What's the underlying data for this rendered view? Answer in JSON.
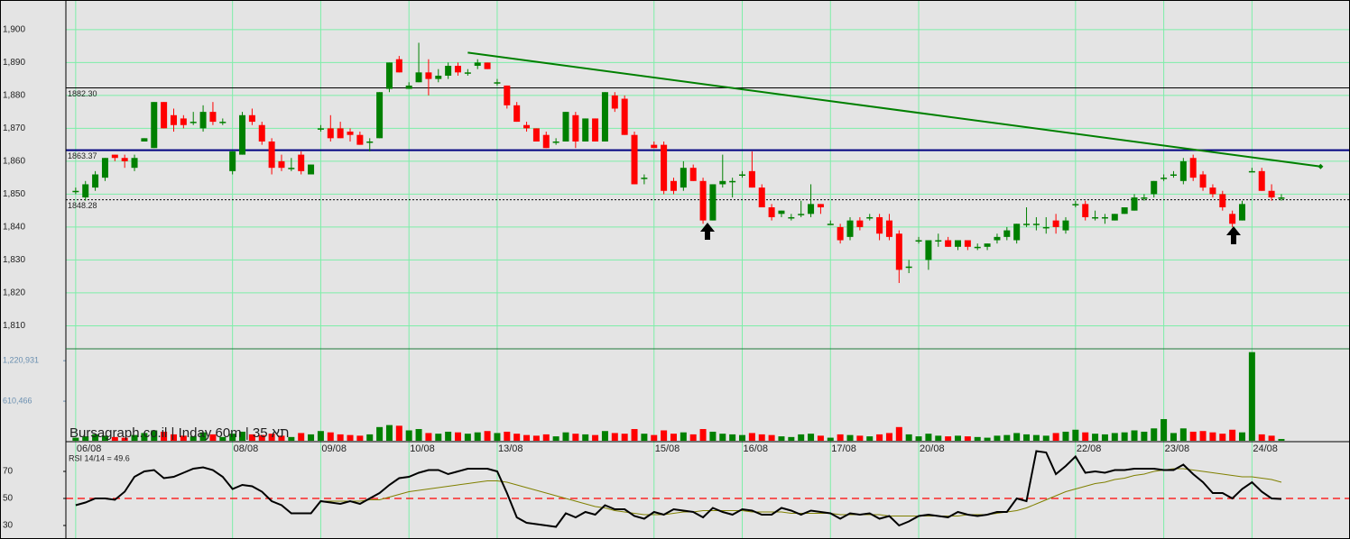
{
  "chart_data": {
    "type": "candlestick",
    "title": "Bursagraph.co.il | Inday 60m | 35 תא",
    "up_color": "#008000",
    "down_color": "#ff0000",
    "grid": true,
    "xlim": [
      -1,
      130
    ],
    "xticks": [
      {
        "value": 0,
        "label": "06/08"
      },
      {
        "value": 16,
        "label": "08/08"
      },
      {
        "value": 25,
        "label": "09/08"
      },
      {
        "value": 34,
        "label": "10/08"
      },
      {
        "value": 43,
        "label": "13/08"
      },
      {
        "value": 59,
        "label": "15/08"
      },
      {
        "value": 68,
        "label": "16/08"
      },
      {
        "value": 77,
        "label": "17/08"
      },
      {
        "value": 86,
        "label": "20/08"
      },
      {
        "value": 102,
        "label": "22/08"
      },
      {
        "value": 111,
        "label": "23/08"
      },
      {
        "value": 120,
        "label": "24/08"
      }
    ],
    "ylim": [
      1803,
      1909
    ],
    "yticks": [
      {
        "value": 1900,
        "label": "1,900"
      },
      {
        "value": 1890,
        "label": "1,890"
      },
      {
        "value": 1880,
        "label": "1,880"
      },
      {
        "value": 1870,
        "label": "1,870"
      },
      {
        "value": 1860,
        "label": "1,860"
      },
      {
        "value": 1850,
        "label": "1,850"
      },
      {
        "value": 1840,
        "label": "1,840"
      },
      {
        "value": 1830,
        "label": "1,830"
      },
      {
        "value": 1820,
        "label": "1,820"
      },
      {
        "value": 1810,
        "label": "1,810"
      }
    ],
    "levels": [
      {
        "value": 1882.3,
        "label": "1882.30",
        "color": "#000000",
        "style": "solid"
      },
      {
        "value": 1863.37,
        "label": "1863.37",
        "color": "#000080",
        "style": "thick"
      },
      {
        "value": 1848.28,
        "label": "1848.28",
        "color": "#000000",
        "style": "dotted"
      }
    ],
    "trendline": {
      "start": [
        40,
        1893
      ],
      "end": [
        127,
        1858.4
      ],
      "color": "#008000"
    },
    "candles": [
      [
        1851,
        1852,
        1850,
        1851
      ],
      [
        1849,
        1854,
        1848,
        1853
      ],
      [
        1852,
        1857,
        1851,
        1856
      ],
      [
        1855,
        1861,
        1854,
        1861
      ],
      [
        1862,
        1862,
        1860,
        1861
      ],
      [
        1861,
        1862,
        1858,
        1860
      ],
      [
        1858,
        1862,
        1857,
        1861
      ],
      [
        1866,
        1867,
        1866,
        1867
      ],
      [
        1864,
        1878,
        1864,
        1878
      ],
      [
        1878,
        1878,
        1870,
        1870
      ],
      [
        1874,
        1876,
        1869,
        1871
      ],
      [
        1873,
        1874,
        1870,
        1871
      ],
      [
        1872,
        1875,
        1871,
        1872
      ],
      [
        1870,
        1877,
        1869,
        1875
      ],
      [
        1875,
        1878,
        1871,
        1872
      ],
      [
        1872,
        1873,
        1871,
        1872
      ],
      [
        1857,
        1863,
        1856,
        1863
      ],
      [
        1862,
        1875,
        1862,
        1874
      ],
      [
        1874,
        1876,
        1871,
        1872
      ],
      [
        1871,
        1872,
        1865,
        1866
      ],
      [
        1866,
        1867,
        1856,
        1858
      ],
      [
        1860,
        1862,
        1857,
        1858
      ],
      [
        1858,
        1861,
        1857,
        1858
      ],
      [
        1862,
        1863,
        1856,
        1857
      ],
      [
        1856,
        1859,
        1856,
        1859
      ],
      [
        1870,
        1871,
        1869,
        1870
      ],
      [
        1870,
        1874,
        1866,
        1867
      ],
      [
        1870,
        1872,
        1867,
        1867
      ],
      [
        1869,
        1870,
        1866,
        1868
      ],
      [
        1868,
        1869,
        1865,
        1865
      ],
      [
        1866,
        1867,
        1863,
        1866
      ],
      [
        1867,
        1881,
        1867,
        1881
      ],
      [
        1882,
        1890,
        1881,
        1890
      ],
      [
        1891,
        1892,
        1887,
        1887
      ],
      [
        1882,
        1884,
        1882,
        1883
      ],
      [
        1884,
        1896,
        1884,
        1887
      ],
      [
        1887,
        1891,
        1880,
        1885
      ],
      [
        1885,
        1888,
        1884,
        1886
      ],
      [
        1886,
        1890,
        1885,
        1889
      ],
      [
        1889,
        1890,
        1886,
        1887
      ],
      [
        1887,
        1888,
        1886,
        1887
      ],
      [
        1889,
        1891,
        1888,
        1890
      ],
      [
        1890,
        1890,
        1888,
        1888
      ],
      [
        1884,
        1885,
        1883,
        1884
      ],
      [
        1883,
        1883,
        1876,
        1877
      ],
      [
        1877,
        1878,
        1872,
        1872
      ],
      [
        1871,
        1872,
        1869,
        1870
      ],
      [
        1870,
        1870,
        1866,
        1866
      ],
      [
        1868,
        1869,
        1864,
        1864
      ],
      [
        1866,
        1867,
        1865,
        1866
      ],
      [
        1866,
        1875,
        1866,
        1875
      ],
      [
        1874,
        1875,
        1864,
        1866
      ],
      [
        1866,
        1873,
        1866,
        1873
      ],
      [
        1873,
        1873,
        1866,
        1866
      ],
      [
        1866,
        1881,
        1866,
        1881
      ],
      [
        1880,
        1881,
        1875,
        1876
      ],
      [
        1879,
        1880,
        1868,
        1868
      ],
      [
        1868,
        1869,
        1853,
        1853
      ],
      [
        1855,
        1856,
        1853,
        1855
      ],
      [
        1865,
        1866,
        1864,
        1864
      ],
      [
        1865,
        1866,
        1850,
        1851
      ],
      [
        1854,
        1855,
        1850,
        1851
      ],
      [
        1852,
        1860,
        1851,
        1858
      ],
      [
        1858,
        1859,
        1854,
        1854
      ],
      [
        1854,
        1855,
        1841,
        1842
      ],
      [
        1842,
        1853,
        1842,
        1853
      ],
      [
        1853,
        1862,
        1852,
        1854
      ],
      [
        1854,
        1855,
        1849,
        1854
      ],
      [
        1856,
        1857,
        1855,
        1856
      ],
      [
        1857,
        1863,
        1852,
        1852
      ],
      [
        1852,
        1853,
        1846,
        1846
      ],
      [
        1846,
        1847,
        1842,
        1843
      ],
      [
        1844,
        1845,
        1843,
        1845
      ],
      [
        1843,
        1844,
        1842,
        1843
      ],
      [
        1844,
        1848,
        1843,
        1844
      ],
      [
        1844,
        1853,
        1843,
        1847
      ],
      [
        1847,
        1847,
        1844,
        1846
      ],
      [
        1841,
        1842,
        1841,
        1841
      ],
      [
        1840,
        1841,
        1835,
        1836
      ],
      [
        1837,
        1843,
        1836,
        1842
      ],
      [
        1842,
        1843,
        1839,
        1840
      ],
      [
        1843,
        1844,
        1842,
        1843
      ],
      [
        1843,
        1844,
        1836,
        1838
      ],
      [
        1842,
        1844,
        1836,
        1837
      ],
      [
        1838,
        1839,
        1823,
        1827
      ],
      [
        1828,
        1830,
        1826,
        1828
      ],
      [
        1836,
        1837,
        1835,
        1836
      ],
      [
        1830,
        1836,
        1827,
        1836
      ],
      [
        1836,
        1838,
        1834,
        1836
      ],
      [
        1836,
        1837,
        1834,
        1834
      ],
      [
        1834,
        1836,
        1833,
        1836
      ],
      [
        1836,
        1836,
        1833,
        1834
      ],
      [
        1834,
        1835,
        1833,
        1834
      ],
      [
        1834,
        1835,
        1833,
        1835
      ],
      [
        1836,
        1838,
        1835,
        1837
      ],
      [
        1837,
        1840,
        1836,
        1839
      ],
      [
        1836,
        1841,
        1835,
        1841
      ],
      [
        1841,
        1846,
        1840,
        1841
      ],
      [
        1841,
        1843,
        1839,
        1841
      ],
      [
        1840,
        1843,
        1838,
        1840
      ],
      [
        1842,
        1844,
        1838,
        1840
      ],
      [
        1839,
        1843,
        1838,
        1842
      ],
      [
        1847,
        1848,
        1846,
        1847
      ],
      [
        1847,
        1848,
        1842,
        1843
      ],
      [
        1843,
        1845,
        1842,
        1843
      ],
      [
        1843,
        1844,
        1841,
        1843
      ],
      [
        1842,
        1844,
        1842,
        1844
      ],
      [
        1844,
        1846,
        1844,
        1846
      ],
      [
        1845,
        1850,
        1845,
        1849
      ],
      [
        1849,
        1850,
        1848,
        1849
      ],
      [
        1850,
        1854,
        1849,
        1854
      ],
      [
        1855,
        1856,
        1854,
        1855
      ],
      [
        1856,
        1857,
        1855,
        1856
      ],
      [
        1854,
        1861,
        1853,
        1860
      ],
      [
        1861,
        1862,
        1854,
        1855
      ],
      [
        1856,
        1857,
        1851,
        1852
      ],
      [
        1852,
        1853,
        1849,
        1850
      ],
      [
        1850,
        1851,
        1845,
        1846
      ],
      [
        1844,
        1845,
        1840,
        1841
      ],
      [
        1842,
        1848,
        1842,
        1847
      ],
      [
        1857,
        1858,
        1857,
        1857
      ],
      [
        1857,
        1858,
        1851,
        1851
      ],
      [
        1851,
        1853,
        1848,
        1849
      ],
      [
        1849,
        1850,
        1848,
        1849
      ]
    ],
    "volume": {
      "ylim": [
        0,
        1400000
      ],
      "yticks": [
        {
          "value": 1220931,
          "label": "1,220,931"
        },
        {
          "value": 610466,
          "label": "610,466"
        }
      ],
      "values": [
        60000,
        80000,
        110000,
        90000,
        70000,
        60000,
        100000,
        130000,
        170000,
        150000,
        110000,
        90000,
        80000,
        140000,
        110000,
        70000,
        120000,
        150000,
        110000,
        100000,
        120000,
        90000,
        70000,
        130000,
        110000,
        160000,
        140000,
        110000,
        100000,
        90000,
        110000,
        220000,
        250000,
        240000,
        170000,
        190000,
        130000,
        120000,
        150000,
        140000,
        120000,
        140000,
        160000,
        130000,
        150000,
        120000,
        100000,
        90000,
        110000,
        80000,
        140000,
        120000,
        110000,
        100000,
        160000,
        130000,
        120000,
        190000,
        120000,
        100000,
        170000,
        120000,
        140000,
        110000,
        190000,
        150000,
        120000,
        110000,
        100000,
        130000,
        110000,
        100000,
        80000,
        70000,
        110000,
        120000,
        90000,
        60000,
        110000,
        100000,
        90000,
        80000,
        110000,
        130000,
        220000,
        110000,
        80000,
        120000,
        90000,
        80000,
        90000,
        80000,
        70000,
        60000,
        90000,
        100000,
        130000,
        110000,
        100000,
        90000,
        130000,
        150000,
        180000,
        140000,
        120000,
        110000,
        130000,
        140000,
        170000,
        150000,
        200000,
        340000,
        130000,
        200000,
        150000,
        160000,
        140000,
        120000,
        180000,
        140000,
        1350000,
        110000,
        90000,
        40000
      ]
    },
    "rsi": {
      "label": "RSI 14/14 = 49.6",
      "color": "#000000",
      "ma_color": "#808000",
      "reference": 50,
      "reference_color": "#ff0000",
      "ylim": [
        20,
        92
      ],
      "yticks": [
        70,
        50,
        30
      ],
      "values": [
        45,
        47,
        50,
        50,
        49,
        55,
        66,
        70,
        71,
        65,
        66,
        69,
        72,
        73,
        71,
        66,
        57,
        60,
        59,
        55,
        48,
        45,
        39,
        39,
        39,
        48,
        47,
        46,
        48,
        46,
        50,
        54,
        60,
        65,
        66,
        69,
        71,
        71,
        68,
        70,
        72,
        72,
        72,
        70,
        54,
        36,
        32,
        31,
        30,
        29,
        39,
        36,
        40,
        38,
        45,
        42,
        42,
        37,
        35,
        40,
        38,
        42,
        41,
        40,
        36,
        43,
        40,
        38,
        42,
        41,
        38,
        38,
        43,
        41,
        38,
        41,
        40,
        39,
        35,
        39,
        38,
        39,
        35,
        37,
        30,
        33,
        37,
        38,
        37,
        36,
        40,
        38,
        37,
        38,
        40,
        40,
        50,
        48,
        85,
        84,
        68,
        74,
        81,
        69,
        70,
        69,
        71,
        71,
        72,
        72,
        72,
        71,
        71,
        75,
        68,
        62,
        54,
        54,
        50,
        57,
        62,
        55,
        50,
        49.6
      ],
      "ma_values": [
        null,
        null,
        null,
        null,
        null,
        null,
        null,
        null,
        null,
        null,
        null,
        null,
        null,
        null,
        null,
        null,
        null,
        null,
        null,
        null,
        null,
        null,
        null,
        null,
        null,
        48,
        48,
        48,
        48,
        48,
        49,
        49,
        51,
        53,
        55,
        56,
        57,
        58,
        59,
        60,
        61,
        62,
        63,
        63,
        62,
        60,
        58,
        56,
        54,
        52,
        50,
        48,
        46,
        44,
        43,
        41,
        40,
        39,
        38,
        38,
        38,
        39,
        40,
        40,
        41,
        41,
        41,
        41,
        41,
        40,
        40,
        40,
        40,
        39,
        39,
        39,
        39,
        39,
        38,
        38,
        38,
        38,
        38,
        37,
        37,
        37,
        37,
        37,
        37,
        37,
        37,
        38,
        38,
        38,
        39,
        40,
        41,
        43,
        46,
        49,
        52,
        55,
        57,
        59,
        61,
        62,
        64,
        65,
        67,
        68,
        70,
        71,
        72,
        72,
        71,
        70,
        69,
        68,
        67,
        66,
        66,
        65,
        64,
        62
      ]
    }
  }
}
